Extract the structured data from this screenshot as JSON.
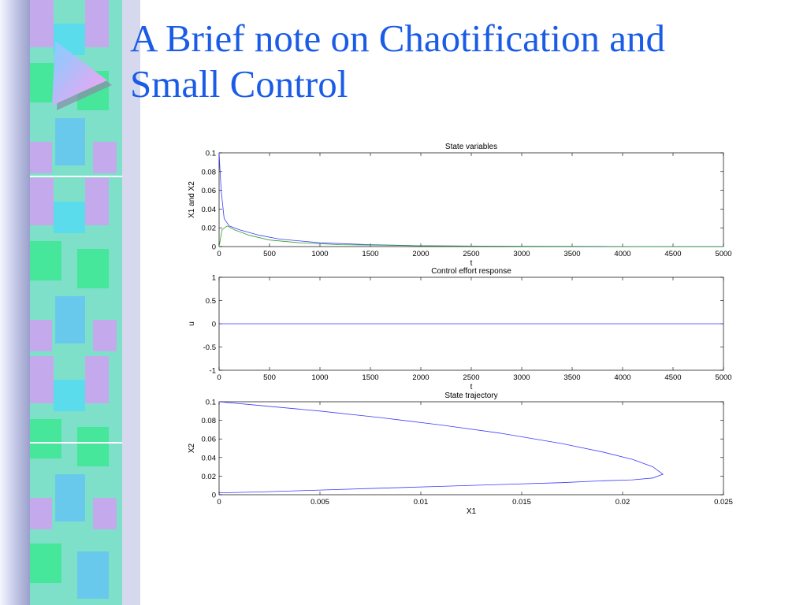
{
  "slide": {
    "title_line1": "A Brief note on Chaotification and",
    "title_line2": "Small Control"
  },
  "colors": {
    "title": "#1a5ce6",
    "series_blue": "#3a3aff",
    "series_green": "#2aa02a"
  },
  "chart_data": [
    {
      "type": "line",
      "title": "State variables",
      "xlabel": "t",
      "ylabel": "X1 and X2",
      "xlim": [
        0,
        5000
      ],
      "ylim": [
        0,
        0.1
      ],
      "xticks": [
        0,
        500,
        1000,
        1500,
        2000,
        2500,
        3000,
        3500,
        4000,
        4500,
        5000
      ],
      "yticks": [
        0,
        0.02,
        0.04,
        0.06,
        0.08,
        0.1
      ],
      "series": [
        {
          "x": [
            0,
            20,
            50,
            100,
            200,
            400,
            600,
            1000,
            1500,
            2000,
            3000,
            4000,
            5000
          ],
          "y": [
            0.1,
            0.06,
            0.03,
            0.022,
            0.018,
            0.012,
            0.008,
            0.004,
            0.002,
            0.0008,
            0.0003,
            0.0001,
            0.0
          ]
        },
        {
          "x": [
            0,
            30,
            80,
            150,
            300,
            500,
            800,
            1200,
            2000,
            3000,
            5000
          ],
          "y": [
            0.0,
            0.018,
            0.022,
            0.018,
            0.012,
            0.007,
            0.004,
            0.002,
            0.0008,
            0.0002,
            0.0
          ]
        }
      ]
    },
    {
      "type": "line",
      "title": "Control effort response",
      "xlabel": "t",
      "ylabel": "u",
      "xlim": [
        0,
        5000
      ],
      "ylim": [
        -1,
        1
      ],
      "xticks": [
        0,
        500,
        1000,
        1500,
        2000,
        2500,
        3000,
        3500,
        4000,
        4500,
        5000
      ],
      "yticks": [
        -1,
        -0.5,
        0,
        0.5,
        1
      ],
      "series": [
        {
          "x": [
            0,
            5000
          ],
          "y": [
            0,
            0
          ]
        }
      ]
    },
    {
      "type": "line",
      "title": "State trajectory",
      "xlabel": "X1",
      "ylabel": "X2",
      "xlim": [
        0,
        0.025
      ],
      "ylim": [
        0,
        0.1
      ],
      "xticks": [
        0,
        0.005,
        0.01,
        0.015,
        0.02,
        0.025
      ],
      "yticks": [
        0,
        0.02,
        0.04,
        0.06,
        0.08,
        0.1
      ],
      "series": [
        {
          "x": [
            0.0,
            0.002,
            0.005,
            0.008,
            0.011,
            0.014,
            0.017,
            0.019,
            0.0205,
            0.0215,
            0.022,
            0.0215,
            0.0205,
            0.019,
            0.017,
            0.014,
            0.011,
            0.008,
            0.005,
            0.002,
            0.0
          ],
          "y": [
            0.1,
            0.096,
            0.09,
            0.083,
            0.075,
            0.066,
            0.055,
            0.046,
            0.038,
            0.03,
            0.022,
            0.018,
            0.016,
            0.015,
            0.013,
            0.011,
            0.009,
            0.007,
            0.005,
            0.003,
            0.002
          ]
        }
      ]
    }
  ]
}
